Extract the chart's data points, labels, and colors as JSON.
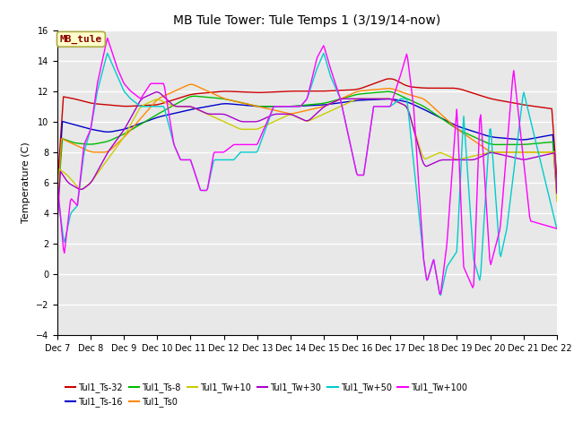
{
  "title": "MB Tule Tower: Tule Temps 1 (3/19/14-now)",
  "ylabel": "Temperature (C)",
  "bg_color": "#e8e8e8",
  "grid_color": "#ffffff",
  "xlim": [
    0,
    15
  ],
  "ylim": [
    -4,
    16
  ],
  "yticks": [
    -4,
    -2,
    0,
    2,
    4,
    6,
    8,
    10,
    12,
    14,
    16
  ],
  "xtick_labels": [
    "Dec 7",
    "Dec 8",
    "Dec 9",
    "Dec 10",
    "Dec 11",
    "Dec 12",
    "Dec 13",
    "Dec 14",
    "Dec 15",
    "Dec 16",
    "Dec 17",
    "Dec 18",
    "Dec 19",
    "Dec 20",
    "Dec 21",
    "Dec 22"
  ],
  "series_colors": {
    "Tul1_Ts-32": "#cc0000",
    "Tul1_Ts-16": "#0000cc",
    "Tul1_Ts-8": "#00bb00",
    "Tul1_Ts0": "#ff8800",
    "Tul1_Tw+10": "#cccc00",
    "Tul1_Tw+30": "#aa00cc",
    "Tul1_Tw+50": "#00cccc",
    "Tul1_Tw+100": "#ff00ff"
  },
  "watermark": "MB_tule",
  "watermark_text_color": "#880000",
  "watermark_bg": "#ffffcc",
  "watermark_edge": "#aaaa44",
  "title_fontsize": 10,
  "tick_fontsize": 7,
  "ylabel_fontsize": 8,
  "legend_fontsize": 7
}
